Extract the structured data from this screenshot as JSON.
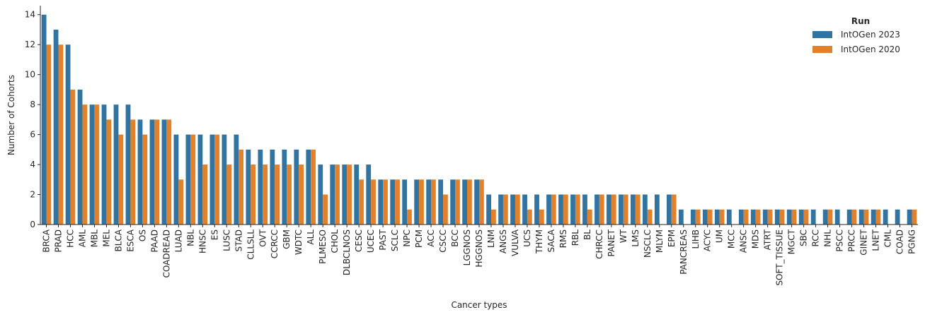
{
  "chart_data": {
    "type": "bar",
    "xlabel": "Cancer types",
    "ylabel": "Number of Cohorts",
    "ylim": [
      0,
      14.6
    ],
    "yticks": [
      0,
      2,
      4,
      6,
      8,
      10,
      12,
      14
    ],
    "grid": false,
    "legend": {
      "title": "Run",
      "position": "top-right"
    },
    "categories": [
      "BRCA",
      "PRAD",
      "HCC",
      "AML",
      "MBL",
      "MEL",
      "BLCA",
      "ESCA",
      "OS",
      "PAAD",
      "COADREAD",
      "LUAD",
      "NBL",
      "HNSC",
      "ES",
      "LUSC",
      "STAD",
      "CLLSLL",
      "OVT",
      "CCRCC",
      "GBM",
      "WDTC",
      "ALL",
      "PLMESO",
      "CHOL",
      "DLBCLNOS",
      "CESC",
      "UCEC",
      "PAST",
      "SCLC",
      "NPC",
      "PCM",
      "ACC",
      "CSCC",
      "BCC",
      "LGGNOS",
      "HGGNOS",
      "LNM",
      "ANGS",
      "VULVA",
      "UCS",
      "THYM",
      "SACA",
      "RMS",
      "RBL",
      "BL",
      "CHRCC",
      "PANET",
      "WT",
      "LMS",
      "NSCLC",
      "MLYM",
      "EPM",
      "PANCREAS",
      "LIHB",
      "ACYC",
      "UM",
      "MCC",
      "ANSC",
      "MDS",
      "ATRT",
      "SOFT_TISSUE",
      "MGCT",
      "SBC",
      "RCC",
      "NHL",
      "PSCC",
      "PRCC",
      "GINET",
      "LNET",
      "CML",
      "COAD",
      "PGNG"
    ],
    "series": [
      {
        "name": "IntOGen 2023",
        "color": "#3274a1",
        "values": [
          14,
          13,
          12,
          9,
          8,
          8,
          8,
          8,
          7,
          7,
          7,
          6,
          6,
          6,
          6,
          6,
          6,
          5,
          5,
          5,
          5,
          5,
          5,
          4,
          4,
          4,
          4,
          4,
          3,
          3,
          3,
          3,
          3,
          3,
          3,
          3,
          3,
          2,
          2,
          2,
          2,
          2,
          2,
          2,
          2,
          2,
          2,
          2,
          2,
          2,
          2,
          2,
          2,
          1,
          1,
          1,
          1,
          1,
          1,
          1,
          1,
          1,
          1,
          1,
          1,
          1,
          1,
          1,
          1,
          1,
          1,
          1,
          1
        ]
      },
      {
        "name": "IntOGen 2020",
        "color": "#e1812c",
        "values": [
          12,
          12,
          9,
          8,
          8,
          7,
          6,
          7,
          6,
          7,
          7,
          3,
          6,
          4,
          6,
          4,
          5,
          4,
          4,
          4,
          4,
          4,
          5,
          2,
          4,
          4,
          3,
          3,
          3,
          3,
          1,
          3,
          3,
          2,
          3,
          3,
          3,
          1,
          2,
          2,
          1,
          1,
          2,
          2,
          2,
          1,
          2,
          2,
          2,
          2,
          1,
          0,
          2,
          0,
          1,
          1,
          1,
          0,
          1,
          1,
          1,
          1,
          1,
          1,
          0,
          1,
          0,
          1,
          1,
          1,
          0,
          0,
          1
        ]
      }
    ]
  }
}
